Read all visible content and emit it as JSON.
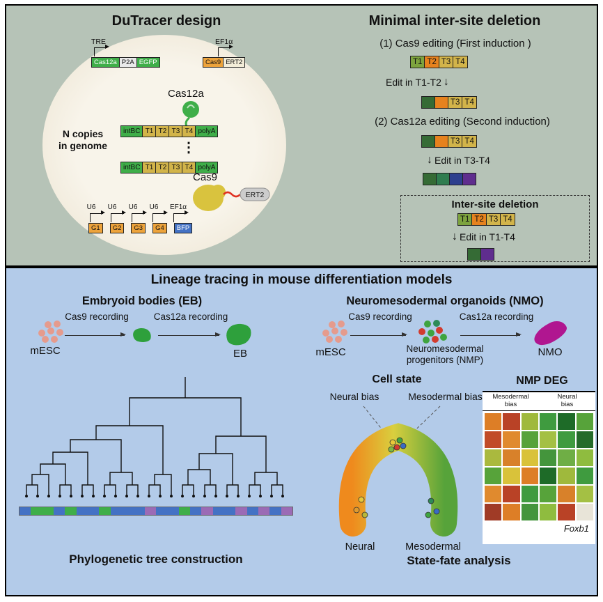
{
  "dutracer": {
    "title": "DuTracer  design",
    "tre": "TRE",
    "ef1a": "EF1α",
    "tet_construct": [
      {
        "label": "Cas12a",
        "bg": "#3fae49",
        "fg": "#ffffff"
      },
      {
        "label": "P2A",
        "bg": "#e9e9e9"
      },
      {
        "label": "EGFP",
        "bg": "#3fae49",
        "fg": "#ffffff"
      }
    ],
    "cas9_construct": [
      {
        "label": "Cas9",
        "bg": "#eda33b"
      },
      {
        "label": "ERT2",
        "bg": "#f4eed9"
      }
    ],
    "cas12a_protein": "Cas12a",
    "n_copies_line1": "N copies",
    "n_copies_line2": "in genome",
    "array": [
      {
        "label": "intBC",
        "bg": "#3fae49"
      },
      {
        "label": "T1",
        "bg": "#d2b44a"
      },
      {
        "label": "T2",
        "bg": "#d2b44a"
      },
      {
        "label": "T3",
        "bg": "#d2b44a"
      },
      {
        "label": "T4",
        "bg": "#d2b44a"
      },
      {
        "label": "polyA",
        "bg": "#3fae49"
      }
    ],
    "cas9_protein": "Cas9",
    "ert2_tag": "ERT2",
    "u6_labels": [
      "U6",
      "U6",
      "U6",
      "U6",
      "EF1α"
    ],
    "guides": [
      {
        "label": "G1",
        "bg": "#eda33b"
      },
      {
        "label": "G2",
        "bg": "#eda33b"
      },
      {
        "label": "G3",
        "bg": "#eda33b"
      },
      {
        "label": "G4",
        "bg": "#eda33b"
      },
      {
        "label": "BFP",
        "bg": "#4472c4",
        "fg": "#ffffff"
      }
    ]
  },
  "deletion": {
    "title": "Minimal inter-site deletion",
    "step1": "(1) Cas9 editing (First induction )",
    "row_initial": [
      {
        "label": "T1",
        "bg": "#7da33e"
      },
      {
        "label": "T2",
        "bg": "#e6821e"
      },
      {
        "label": "T3",
        "bg": "#d2b44a"
      },
      {
        "label": "T4",
        "bg": "#d2b44a"
      }
    ],
    "edit1": "Edit in T1-T2",
    "row_after1": [
      {
        "label": "",
        "bg": "#356b35"
      },
      {
        "label": "",
        "bg": "#e6821e"
      },
      {
        "label": "T3",
        "bg": "#d2b44a"
      },
      {
        "label": "T4",
        "bg": "#d2b44a"
      }
    ],
    "step2": "(2) Cas12a editing (Second induction)",
    "edit2": "Edit in T3-T4",
    "row_after2": [
      {
        "label": "",
        "bg": "#356b35"
      },
      {
        "label": "",
        "bg": "#2f7d4f"
      },
      {
        "label": "",
        "bg": "#2d3f8e"
      },
      {
        "label": "",
        "bg": "#5f2d8e"
      }
    ],
    "inter_site": {
      "title": "Inter-site deletion",
      "edit": "Edit in T1-T4",
      "row_after": [
        {
          "label": "",
          "bg": "#356b35"
        },
        {
          "label": "",
          "bg": "#5f2d8e"
        }
      ]
    }
  },
  "lineage": {
    "title": "Lineage tracing in mouse differentiation models",
    "eb": {
      "title": "Embryoid bodies (EB)",
      "mesc": "mESC",
      "arrow1_label": "Cas9 recording",
      "arrow2_label": "Cas12a recording",
      "product": "EB"
    },
    "nmo": {
      "title": "Neuromesodermal organoids (NMO)",
      "mesc": "mESC",
      "arrow1_label": "Cas9 recording",
      "nmp_line1": "Neuromesodermal",
      "nmp_line2": "progenitors (NMP)",
      "arrow2_label": "Cas12a recording",
      "product": "NMO"
    },
    "tree": {
      "caption": "Phylogenetic tree construction",
      "bar_segments": [
        "#4472c4",
        "#3fae49",
        "#3fae49",
        "#4472c4",
        "#3fae49",
        "#4472c4",
        "#4472c4",
        "#3fae49",
        "#4472c4",
        "#4472c4",
        "#4472c4",
        "#9b6bb5",
        "#4472c4",
        "#4472c4",
        "#3fae49",
        "#4472c4",
        "#9b6bb5",
        "#4472c4",
        "#4472c4",
        "#9b6bb5",
        "#4472c4",
        "#9b6bb5",
        "#4472c4",
        "#9b6bb5"
      ]
    },
    "state": {
      "title": "Cell state",
      "neural_bias": "Neural bias",
      "meso_bias": "Mesodermal bias",
      "neural": "Neural",
      "mesodermal": "Mesodermal",
      "caption": "State-fate analysis"
    },
    "heatmap": {
      "title": "NMP DEG",
      "col1_line1": "Mesodermal",
      "col1_line2": "bias",
      "col2_line1": "Neural",
      "col2_line2": "bias",
      "gene": "Foxb1",
      "cells": [
        [
          "#dd7e26",
          "#b94226",
          "#9fb93c",
          "#3f9b3f",
          "#1e6b28",
          "#57a33a"
        ],
        [
          "#c14b28",
          "#e08a2e",
          "#57a33a",
          "#a4c044",
          "#3f9b3f",
          "#256b2a"
        ],
        [
          "#aab93e",
          "#d8812a",
          "#d9c23a",
          "#44953c",
          "#6fae45",
          "#8fbc3f"
        ],
        [
          "#57a33a",
          "#d9c23a",
          "#dd7e26",
          "#1e6b28",
          "#9fb93c",
          "#3f9b3f"
        ],
        [
          "#e08a2e",
          "#b94226",
          "#3f9b3f",
          "#57a33a",
          "#d8812a",
          "#a4c044"
        ],
        [
          "#a03b26",
          "#dd7e26",
          "#44953c",
          "#8fbc3f",
          "#b94226",
          "#e8e4d8"
        ]
      ]
    }
  }
}
